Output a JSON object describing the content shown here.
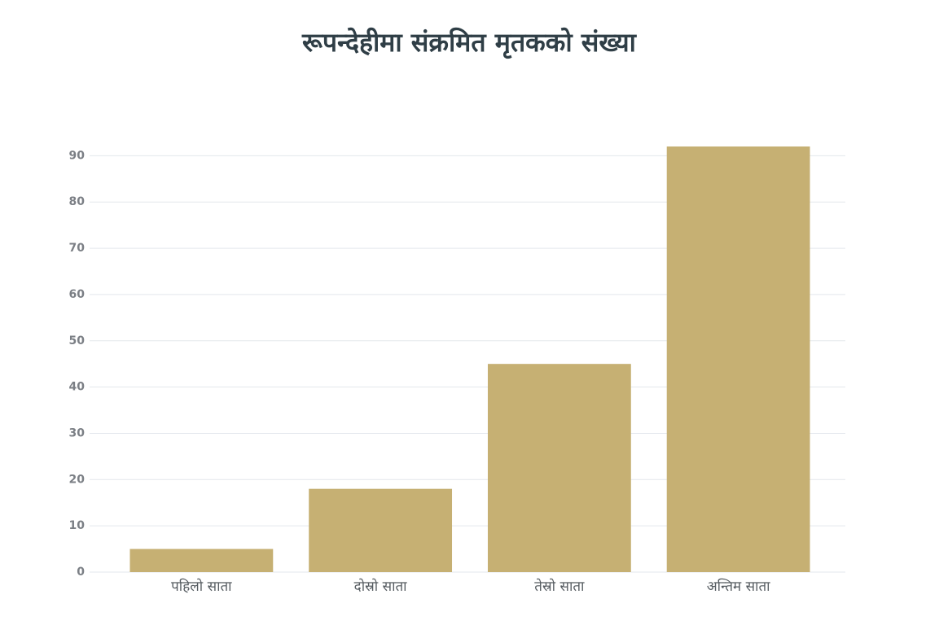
{
  "chart_data": {
    "type": "bar",
    "title": "रूपन्देहीमा संक्रमित मृतकको संख्या",
    "categories": [
      "पहिलो साता",
      "दोस्रो साता",
      "तेस्रो साता",
      "अन्तिम साता"
    ],
    "values": [
      5,
      18,
      45,
      92
    ],
    "color": "#c6b073",
    "ylim": [
      0,
      92
    ],
    "yticks": [
      0,
      10,
      20,
      30,
      40,
      50,
      60,
      70,
      80,
      90
    ],
    "grid": true
  }
}
